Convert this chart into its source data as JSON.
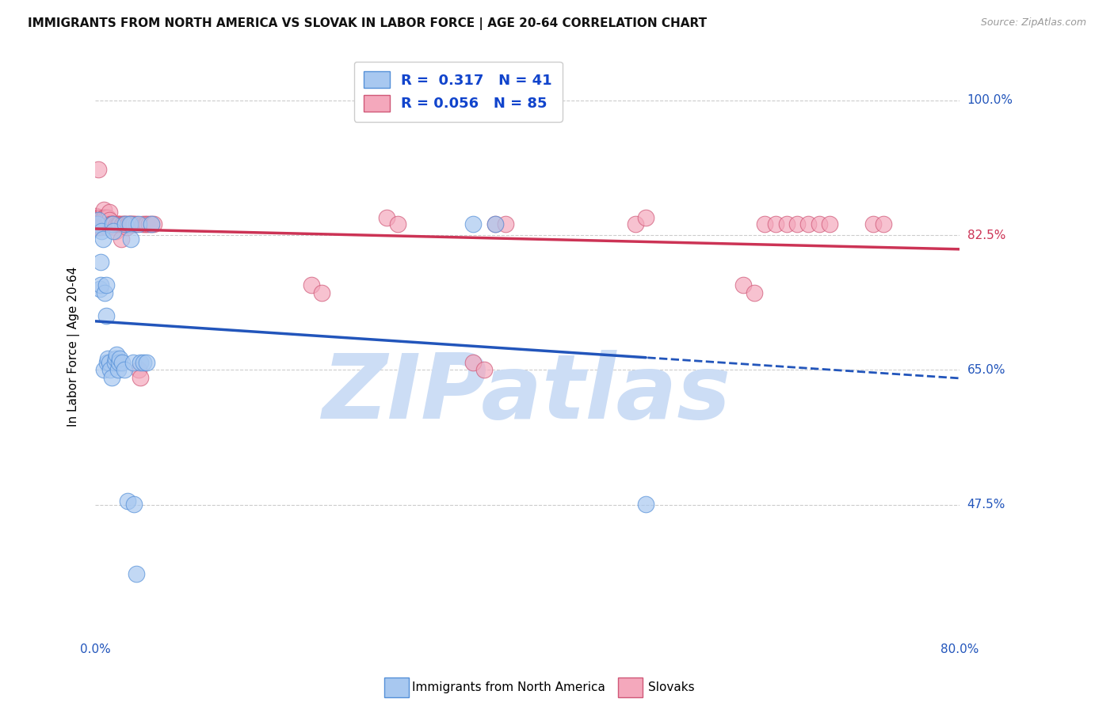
{
  "title": "IMMIGRANTS FROM NORTH AMERICA VS SLOVAK IN LABOR FORCE | AGE 20-64 CORRELATION CHART",
  "source": "Source: ZipAtlas.com",
  "ylabel": "In Labor Force | Age 20-64",
  "x_min": 0.0,
  "x_max": 0.8,
  "y_min": 0.3,
  "y_max": 1.06,
  "y_ticks": [
    0.475,
    0.65,
    0.825,
    1.0
  ],
  "y_tick_labels": [
    "47.5%",
    "65.0%",
    "82.5%",
    "100.0%"
  ],
  "x_ticks": [
    0.0,
    0.1,
    0.2,
    0.3,
    0.4,
    0.5,
    0.6,
    0.7,
    0.8
  ],
  "x_tick_labels": [
    "0.0%",
    "",
    "",
    "",
    "",
    "",
    "",
    "",
    "80.0%"
  ],
  "blue_R": 0.317,
  "blue_N": 41,
  "pink_R": 0.056,
  "pink_N": 85,
  "blue_label": "Immigrants from North America",
  "pink_label": "Slovaks",
  "blue_color": "#A8C8F0",
  "pink_color": "#F4A8BC",
  "blue_edge_color": "#5590D8",
  "pink_edge_color": "#D05878",
  "blue_line_color": "#2255BB",
  "pink_line_color": "#CC3355",
  "legend_R_color": "#1144CC",
  "background_color": "#ffffff",
  "watermark_color": "#ccddf5",
  "watermark_text": "ZIPatlas",
  "blue_x": [
    0.002,
    0.003,
    0.004,
    0.005,
    0.005,
    0.006,
    0.007,
    0.008,
    0.009,
    0.01,
    0.01,
    0.011,
    0.012,
    0.013,
    0.014,
    0.015,
    0.016,
    0.017,
    0.018,
    0.019,
    0.02,
    0.021,
    0.022,
    0.023,
    0.025,
    0.027,
    0.028,
    0.03,
    0.032,
    0.033,
    0.035,
    0.036,
    0.038,
    0.04,
    0.042,
    0.045,
    0.048,
    0.052,
    0.35,
    0.37,
    0.51
  ],
  "blue_y": [
    0.84,
    0.845,
    0.755,
    0.79,
    0.76,
    0.83,
    0.82,
    0.65,
    0.75,
    0.76,
    0.72,
    0.66,
    0.665,
    0.66,
    0.65,
    0.64,
    0.84,
    0.83,
    0.66,
    0.665,
    0.67,
    0.65,
    0.66,
    0.665,
    0.66,
    0.65,
    0.84,
    0.48,
    0.84,
    0.82,
    0.66,
    0.476,
    0.385,
    0.84,
    0.66,
    0.66,
    0.66,
    0.84,
    0.84,
    0.84,
    0.476
  ],
  "pink_x": [
    0.001,
    0.001,
    0.001,
    0.002,
    0.002,
    0.002,
    0.003,
    0.003,
    0.003,
    0.003,
    0.004,
    0.004,
    0.005,
    0.005,
    0.005,
    0.006,
    0.006,
    0.007,
    0.007,
    0.008,
    0.008,
    0.008,
    0.009,
    0.009,
    0.01,
    0.01,
    0.011,
    0.011,
    0.012,
    0.012,
    0.013,
    0.013,
    0.014,
    0.015,
    0.016,
    0.017,
    0.018,
    0.019,
    0.02,
    0.021,
    0.022,
    0.023,
    0.024,
    0.025,
    0.026,
    0.027,
    0.028,
    0.029,
    0.03,
    0.031,
    0.032,
    0.033,
    0.034,
    0.035,
    0.036,
    0.038,
    0.04,
    0.042,
    0.044,
    0.046,
    0.048,
    0.05,
    0.052,
    0.054,
    0.2,
    0.21,
    0.27,
    0.28,
    0.35,
    0.36,
    0.37,
    0.38,
    0.5,
    0.51,
    0.6,
    0.61,
    0.62,
    0.63,
    0.64,
    0.65,
    0.66,
    0.67,
    0.68,
    0.72,
    0.73
  ],
  "pink_y": [
    0.85,
    0.84,
    0.835,
    0.848,
    0.84,
    0.835,
    0.91,
    0.848,
    0.84,
    0.835,
    0.848,
    0.84,
    0.848,
    0.84,
    0.835,
    0.848,
    0.84,
    0.848,
    0.84,
    0.858,
    0.848,
    0.84,
    0.848,
    0.84,
    0.848,
    0.84,
    0.84,
    0.835,
    0.848,
    0.84,
    0.855,
    0.845,
    0.84,
    0.84,
    0.84,
    0.84,
    0.835,
    0.83,
    0.84,
    0.84,
    0.84,
    0.84,
    0.82,
    0.84,
    0.84,
    0.84,
    0.84,
    0.835,
    0.84,
    0.84,
    0.84,
    0.84,
    0.84,
    0.84,
    0.84,
    0.84,
    0.65,
    0.64,
    0.84,
    0.84,
    0.84,
    0.84,
    0.84,
    0.84,
    0.76,
    0.75,
    0.848,
    0.84,
    0.66,
    0.65,
    0.84,
    0.84,
    0.84,
    0.848,
    0.76,
    0.75,
    0.84,
    0.84,
    0.84,
    0.84,
    0.84,
    0.84,
    0.84,
    0.84,
    0.84
  ]
}
